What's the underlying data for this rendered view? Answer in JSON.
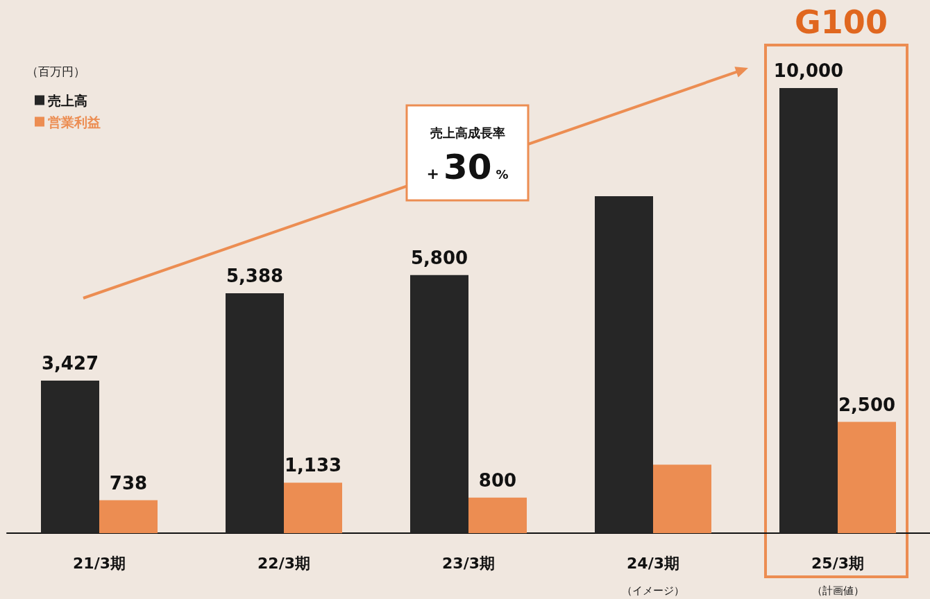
{
  "chart_data": {
    "type": "bar",
    "title": "G100",
    "ylabel": "（百万円）",
    "categories": [
      "21/3期",
      "22/3期",
      "23/3期",
      "24/3期",
      "25/3期"
    ],
    "series": [
      {
        "name": "売上高",
        "color": "#262626",
        "values": [
          3427,
          5388,
          5800,
          7570,
          10000
        ],
        "value_labels": [
          "3,427",
          "5,388",
          "5,800",
          null,
          "10,000"
        ]
      },
      {
        "name": "営業利益",
        "color": "#ec8d52",
        "values": [
          738,
          1133,
          800,
          1540,
          2500
        ],
        "value_labels": [
          "738",
          "1,133",
          "800",
          null,
          "2,500"
        ]
      }
    ],
    "ylim": [
      0,
      10000
    ],
    "legend": "top left",
    "annotations": [
      "売上高成長率",
      "+30%",
      "（イメージ）",
      "（計画値）"
    ]
  }
}
